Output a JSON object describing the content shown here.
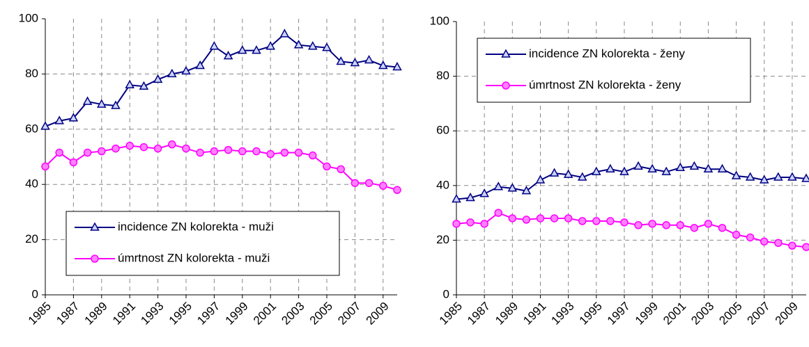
{
  "chart_data": [
    {
      "type": "line",
      "x": [
        1985,
        1986,
        1987,
        1988,
        1989,
        1990,
        1991,
        1992,
        1993,
        1994,
        1995,
        1996,
        1997,
        1998,
        1999,
        2000,
        2001,
        2002,
        2003,
        2004,
        2005,
        2006,
        2007,
        2008,
        2009,
        2010
      ],
      "xlim": [
        1985,
        2010
      ],
      "xticks": [
        1985,
        1987,
        1989,
        1991,
        1993,
        1995,
        1997,
        1999,
        2001,
        2003,
        2005,
        2007,
        2009
      ],
      "ylim": [
        0,
        100
      ],
      "yticks": [
        0,
        20,
        40,
        60,
        80,
        100
      ],
      "grid": true,
      "legend": "lower left",
      "series": [
        {
          "name": "incidence ZN kolorekta - muži",
          "color": "#000080",
          "marker": "triangle",
          "values": [
            61,
            63,
            64,
            70,
            69,
            68.5,
            76,
            75.5,
            78,
            80,
            81,
            83,
            90,
            86.5,
            88.5,
            88.5,
            90,
            94.5,
            90.5,
            90,
            89.5,
            84.5,
            84,
            85,
            83,
            82.5
          ]
        },
        {
          "name": "úmrtnost ZN kolorekta - muži",
          "color": "#ff00ff",
          "marker": "circle",
          "values": [
            46.5,
            51.5,
            48,
            51.5,
            52,
            53,
            54,
            53.5,
            53,
            54.5,
            53,
            51.5,
            52,
            52.5,
            52,
            52,
            51,
            51.5,
            51.5,
            50.5,
            46.5,
            45.5,
            40.5,
            40.5,
            39.5,
            38
          ]
        }
      ]
    },
    {
      "type": "line",
      "x": [
        1985,
        1986,
        1987,
        1988,
        1989,
        1990,
        1991,
        1992,
        1993,
        1994,
        1995,
        1996,
        1997,
        1998,
        1999,
        2000,
        2001,
        2002,
        2003,
        2004,
        2005,
        2006,
        2007,
        2008,
        2009,
        2010
      ],
      "xlim": [
        1985,
        2010
      ],
      "xticks": [
        1985,
        1987,
        1989,
        1991,
        1993,
        1995,
        1997,
        1999,
        2001,
        2003,
        2005,
        2007,
        2009
      ],
      "ylim": [
        0,
        100
      ],
      "yticks": [
        0,
        20,
        40,
        60,
        80,
        100
      ],
      "grid": true,
      "legend": "upper left",
      "series": [
        {
          "name": "incidence ZN kolorekta - ženy",
          "color": "#000080",
          "marker": "triangle",
          "values": [
            35,
            35.5,
            37,
            39.5,
            39,
            38,
            42,
            44.5,
            44,
            43,
            45,
            46,
            45,
            47,
            46,
            45,
            46.5,
            47,
            46,
            46,
            43.5,
            43,
            42,
            43,
            43,
            42.5
          ]
        },
        {
          "name": "úmrtnost ZN kolorekta - ženy",
          "color": "#ff00ff",
          "marker": "circle",
          "values": [
            26,
            26.5,
            26,
            30,
            28,
            27.5,
            28,
            28,
            28,
            27,
            27,
            27,
            26.5,
            25.5,
            26,
            25.5,
            25.5,
            24.5,
            26,
            24.5,
            22,
            21,
            19.5,
            19,
            18,
            17.5
          ]
        }
      ]
    }
  ]
}
